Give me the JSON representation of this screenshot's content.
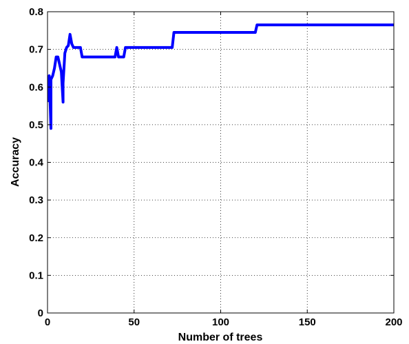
{
  "chart_data": {
    "type": "line",
    "title": "",
    "xlabel": "Number of trees",
    "ylabel": "Accuracy",
    "xlim": [
      0,
      200
    ],
    "ylim": [
      0,
      0.8
    ],
    "x_ticks": [
      "0",
      "50",
      "100",
      "150",
      "200"
    ],
    "y_ticks": [
      "0",
      "0.1",
      "0.2",
      "0.3",
      "0.4",
      "0.5",
      "0.6",
      "0.7",
      "0.8"
    ],
    "grid": true,
    "grid_style": "dotted",
    "legend": "none",
    "series": [
      {
        "color": "#0000ff",
        "x": [
          1,
          1,
          2,
          2,
          3,
          3,
          4,
          5,
          6,
          7,
          8,
          9,
          9,
          10,
          11,
          12,
          13,
          14,
          15,
          16,
          19,
          20,
          39,
          40,
          41,
          42,
          44,
          45,
          72,
          73,
          120,
          121,
          200
        ],
        "y": [
          0.56,
          0.63,
          0.49,
          0.62,
          0.63,
          0.63,
          0.65,
          0.68,
          0.68,
          0.66,
          0.64,
          0.56,
          0.61,
          0.69,
          0.705,
          0.71,
          0.74,
          0.715,
          0.705,
          0.705,
          0.705,
          0.68,
          0.68,
          0.705,
          0.68,
          0.68,
          0.68,
          0.705,
          0.705,
          0.745,
          0.745,
          0.765,
          0.765
        ]
      }
    ]
  }
}
